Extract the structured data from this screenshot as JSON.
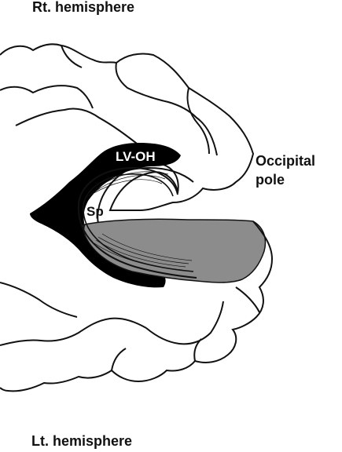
{
  "labels": {
    "right_hemisphere": "Rt. hemisphere",
    "left_hemisphere": "Lt. hemisphere",
    "occipital_line1": "Occipital",
    "occipital_line2": "pole",
    "lateral_ventricle_occipital_horn": "LV-OH",
    "splenium": "Sp"
  },
  "colors": {
    "outline": "#111111",
    "ventricle_fill": "#000000",
    "shaded_region": "#8c8c8c",
    "background": "#ffffff"
  }
}
